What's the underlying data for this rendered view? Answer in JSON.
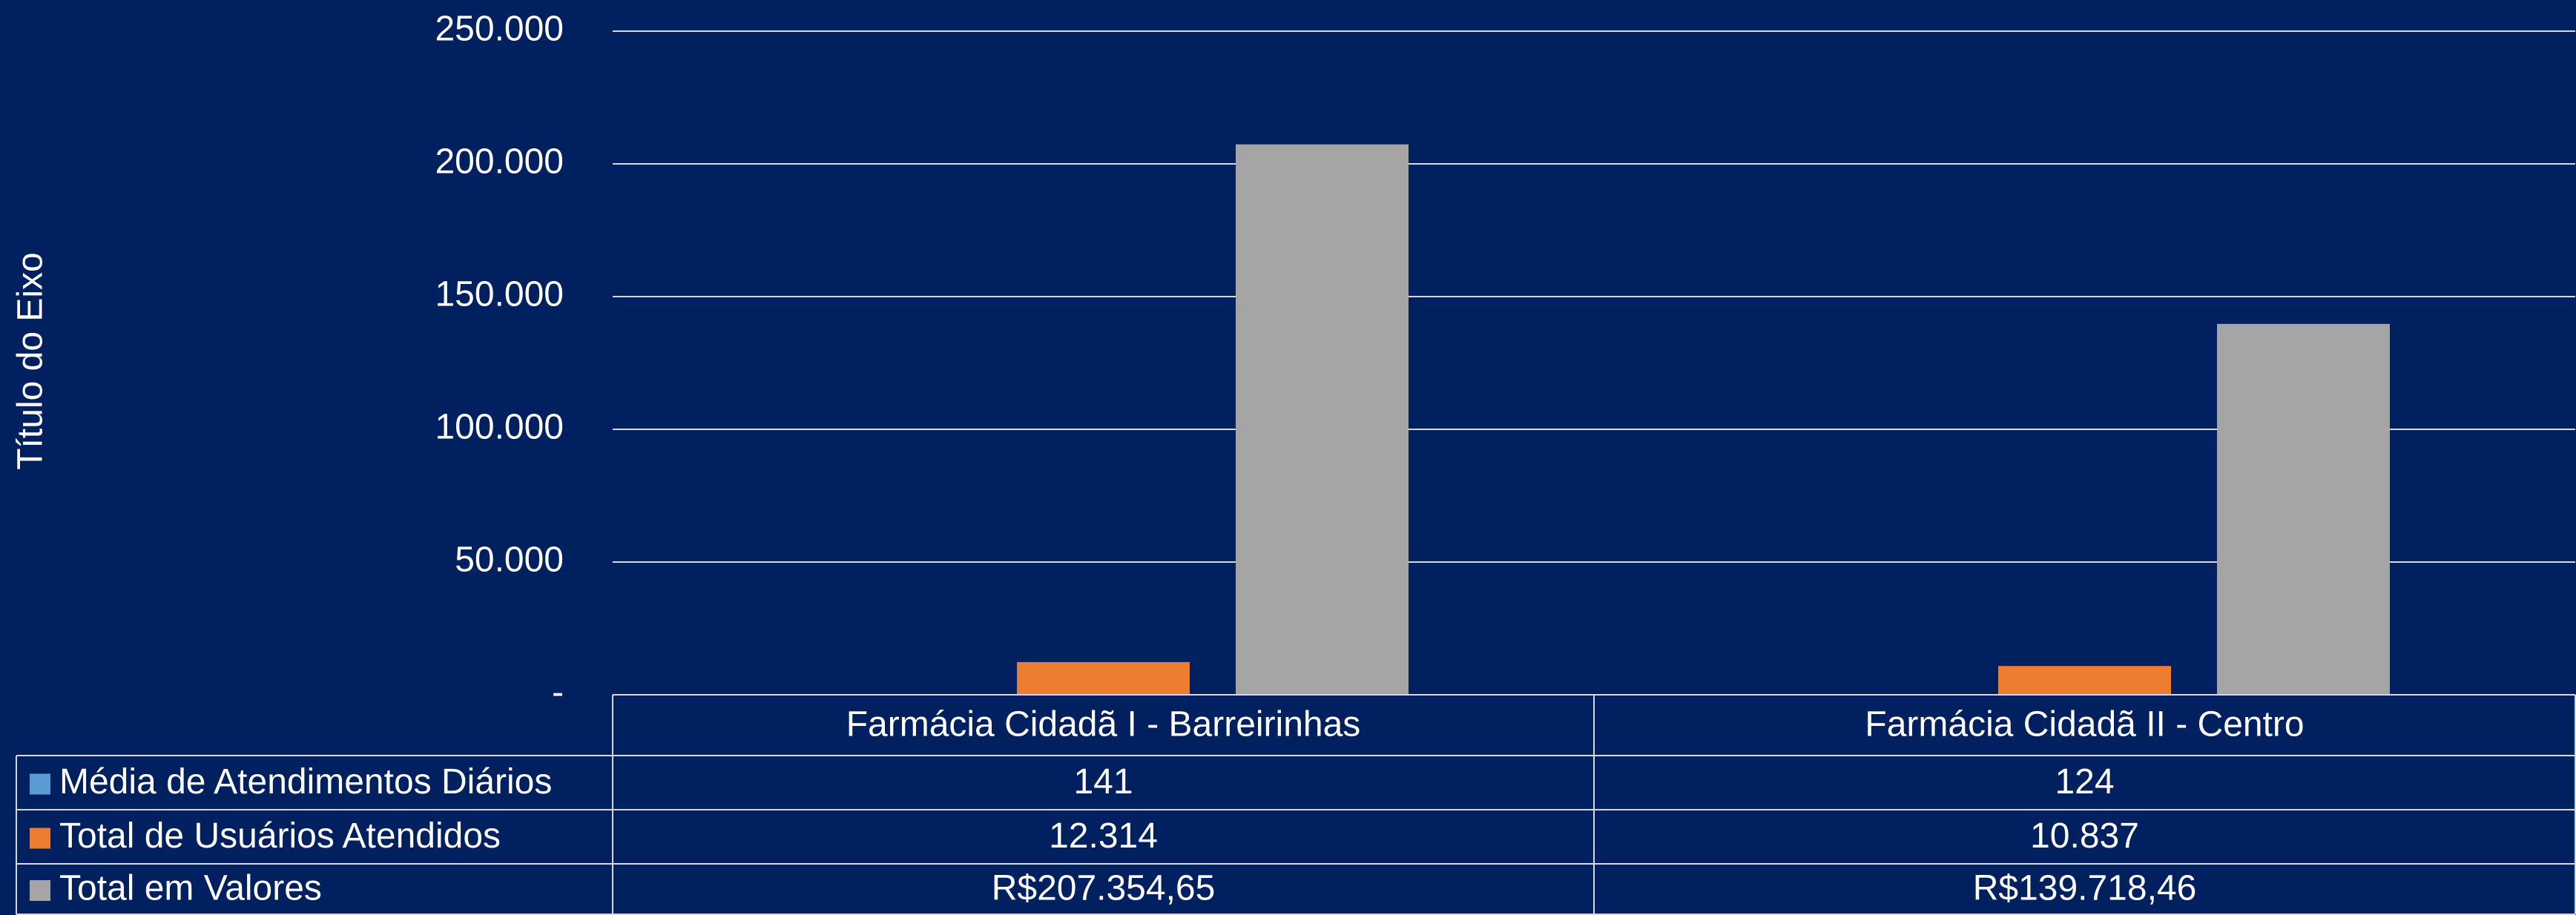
{
  "chart_data": {
    "type": "bar",
    "y_axis_label": "Título do Eixo",
    "categories": [
      "Farmácia Cidadã I - Barreirinhas",
      "Farmácia Cidadã II - Centro"
    ],
    "series": [
      {
        "name": "Média de Atendimentos Diários",
        "color": "#5b9bd5",
        "values": [
          141,
          124
        ]
      },
      {
        "name": "Total de Usuários Atendidos",
        "color": "#ed7d31",
        "values": [
          12314,
          10837
        ],
        "value_labels": [
          "12.314",
          "10.837"
        ]
      },
      {
        "name": "Total em Valores",
        "color": "#a5a5a5",
        "values": [
          207354.65,
          139718.46
        ],
        "value_labels": [
          "R$207.354,65",
          "R$139.718,46"
        ]
      }
    ],
    "ylim": [
      0,
      250000
    ],
    "yticks": [
      {
        "value": 0,
        "label": "-"
      },
      {
        "value": 50000,
        "label": "50.000"
      },
      {
        "value": 100000,
        "label": "100.000"
      },
      {
        "value": 150000,
        "label": "150.000"
      },
      {
        "value": 200000,
        "label": "200.000"
      },
      {
        "value": 250000,
        "label": "250.000"
      }
    ],
    "grid": true,
    "data_table": true
  }
}
